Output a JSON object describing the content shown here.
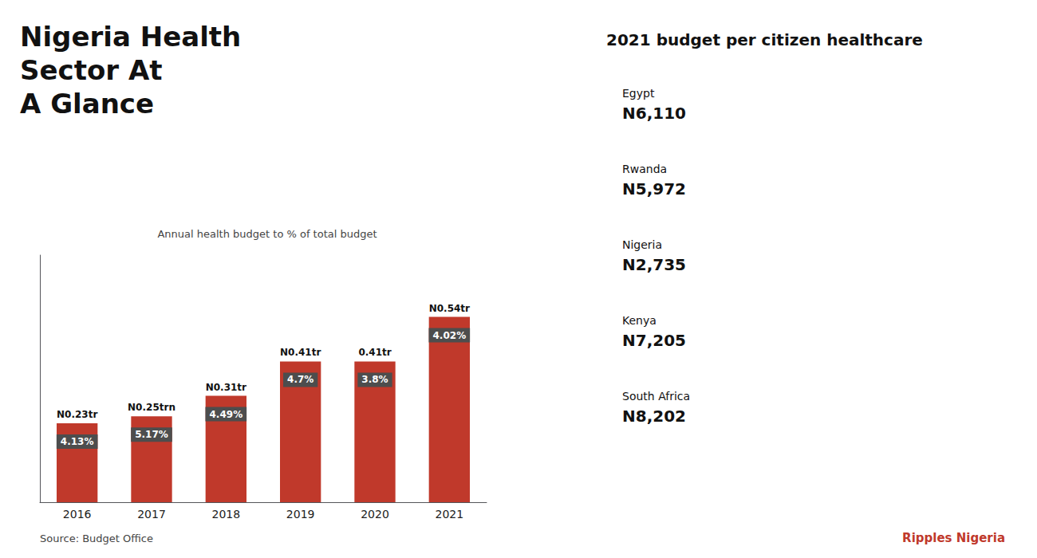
{
  "chart_data": {
    "type": "bar",
    "title": "Nigeria Health\nSector At\nA Glance",
    "subtitle": "Annual health budget to % of total budget",
    "categories": [
      "2016",
      "2017",
      "2018",
      "2019",
      "2020",
      "2021"
    ],
    "values": [
      0.23,
      0.25,
      0.31,
      0.41,
      0.41,
      0.54
    ],
    "value_labels": [
      "N0.23tr",
      "N0.25trn",
      "N0.31tr",
      "N0.41tr",
      "0.41tr",
      "N0.54tr"
    ],
    "data_labels": true,
    "share_labels": [
      "4.13%",
      "5.17%",
      "4.49%",
      "4.7%",
      "3.8%",
      "4.02%"
    ],
    "share_label_color": "#4d4d4d",
    "color": "#c0392b",
    "ylim": [
      0,
      0.72
    ],
    "yticks": [],
    "tick_labels": "x",
    "grid": false,
    "map_title": "2021 budget per citizen healthcare",
    "map_labels": [
      {
        "name": "Egypt",
        "value": "N6,110"
      },
      {
        "name": "Rwanda",
        "value": "N5,972"
      },
      {
        "name": "Nigeria",
        "value": "N2,735"
      },
      {
        "name": "Kenya",
        "value": "N7,205"
      },
      {
        "name": "South Africa",
        "value": "N8,202"
      }
    ],
    "source": "Source: Budget Office",
    "credit": "Ripples Nigeria"
  }
}
